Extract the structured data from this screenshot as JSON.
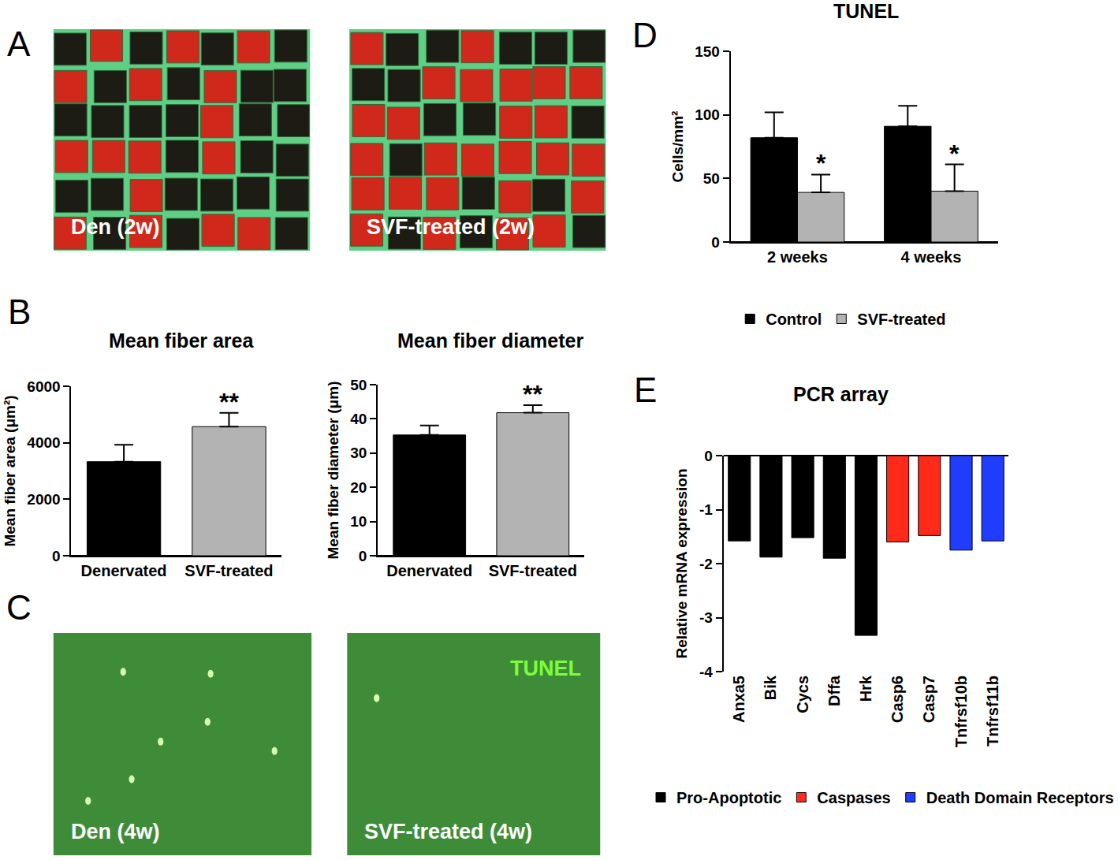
{
  "panel_letters": [
    "A",
    "B",
    "C",
    "D",
    "E"
  ],
  "chart_data": [
    {
      "type": "image",
      "annotations": [
        {
          "text": "Den (2w)"
        }
      ]
    },
    {
      "type": "image",
      "annotations": [
        {
          "text": "SVF-treated (2w)"
        }
      ]
    },
    {
      "type": "bar",
      "title": "Mean fiber area",
      "ylabel": "Mean fiber area (μm²)",
      "categories": [
        "Denervated",
        "SVF-treated"
      ],
      "values": [
        3330,
        4570
      ],
      "errors": [
        600,
        490
      ],
      "colors": [
        "#000000",
        "#b3b3b3"
      ],
      "ylim": [
        0,
        6000
      ],
      "yticks": [
        0,
        2000,
        4000,
        6000
      ],
      "annotations": [
        {
          "category": "SVF-treated",
          "text": "**"
        }
      ]
    },
    {
      "type": "bar",
      "title": "Mean fiber diameter",
      "ylabel": "Mean fiber diameter (μm)",
      "categories": [
        "Denervated",
        "SVF-treated"
      ],
      "values": [
        35.3,
        41.8
      ],
      "errors": [
        2.8,
        2.2
      ],
      "colors": [
        "#000000",
        "#b3b3b3"
      ],
      "ylim": [
        0,
        50
      ],
      "yticks": [
        0,
        10,
        20,
        30,
        40,
        50
      ],
      "annotations": [
        {
          "category": "SVF-treated",
          "text": "**"
        }
      ]
    },
    {
      "type": "image",
      "annotations": [
        {
          "text": "Den (4w)"
        }
      ]
    },
    {
      "type": "image",
      "annotations": [
        {
          "text": "SVF-treated (4w)"
        },
        {
          "text": "TUNEL"
        }
      ]
    },
    {
      "type": "bar",
      "title": "TUNEL",
      "ylabel": "Cells/mm²",
      "categories": [
        "2 weeks",
        "4 weeks"
      ],
      "legend": "bottom",
      "series": [
        {
          "name": "Control",
          "color": "#000000",
          "values": [
            82,
            91
          ],
          "errors": [
            20,
            16
          ]
        },
        {
          "name": "SVF-treated",
          "color": "#b3b3b3",
          "values": [
            39,
            40
          ],
          "errors": [
            14,
            21
          ]
        }
      ],
      "ylim": [
        0,
        150
      ],
      "yticks": [
        0,
        50,
        100,
        150
      ],
      "annotations": [
        {
          "series": "SVF-treated",
          "category": "2 weeks",
          "text": "*"
        },
        {
          "series": "SVF-treated",
          "category": "4 weeks",
          "text": "*"
        }
      ]
    },
    {
      "type": "bar",
      "title": "PCR array",
      "ylabel": "Relative mRNA expression",
      "categories": [
        "Anxa5",
        "Bik",
        "Cycs",
        "Dffa",
        "Hrk",
        "Casp6",
        "Casp7",
        "Tnfrsf10b",
        "Tnfrsf11b"
      ],
      "legend": "bottom",
      "series": [
        {
          "name": "Pro-Apoptotic",
          "color": "#000000",
          "values": [
            -1.58,
            -1.88,
            -1.52,
            -1.9,
            -3.33,
            null,
            null,
            null,
            null
          ]
        },
        {
          "name": "Caspases",
          "color": "#ff2a1a",
          "values": [
            null,
            null,
            null,
            null,
            null,
            -1.6,
            -1.48,
            null,
            null
          ]
        },
        {
          "name": "Death Domain Receptors",
          "color": "#1f3cff",
          "values": [
            null,
            null,
            null,
            null,
            null,
            null,
            null,
            -1.75,
            -1.58
          ]
        }
      ],
      "ylim": [
        -4,
        0
      ],
      "yticks": [
        -4,
        -3,
        -2,
        -1,
        0
      ]
    }
  ]
}
